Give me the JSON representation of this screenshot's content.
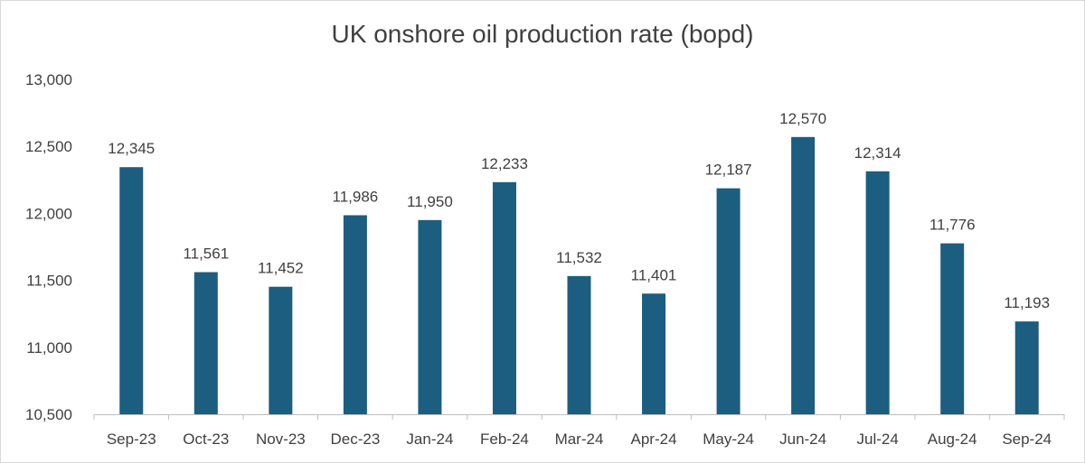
{
  "chart_data": {
    "type": "bar",
    "title": "UK onshore oil production rate (bopd)",
    "xlabel": "",
    "ylabel": "",
    "categories": [
      "Sep-23",
      "Oct-23",
      "Nov-23",
      "Dec-23",
      "Jan-24",
      "Feb-24",
      "Mar-24",
      "Apr-24",
      "May-24",
      "Jun-24",
      "Jul-24",
      "Aug-24",
      "Sep-24"
    ],
    "values": [
      12345,
      11561,
      11452,
      11986,
      11950,
      12233,
      11532,
      11401,
      12187,
      12570,
      12314,
      11776,
      11193
    ],
    "value_labels": [
      "12,345",
      "11,561",
      "11,452",
      "11,986",
      "11,950",
      "12,233",
      "11,532",
      "11,401",
      "12,187",
      "12,570",
      "12,314",
      "11,776",
      "11,193"
    ],
    "ylim": [
      10500,
      13000
    ],
    "yticks": [
      10500,
      11000,
      11500,
      12000,
      12500,
      13000
    ],
    "ytick_labels": [
      "10,500",
      "11,000",
      "11,500",
      "12,000",
      "12,500",
      "13,000"
    ],
    "grid": false,
    "legend": "none",
    "bar_color": "#1b5e7f",
    "axis_color": "#bfbfbf",
    "text_color": "#404040"
  }
}
